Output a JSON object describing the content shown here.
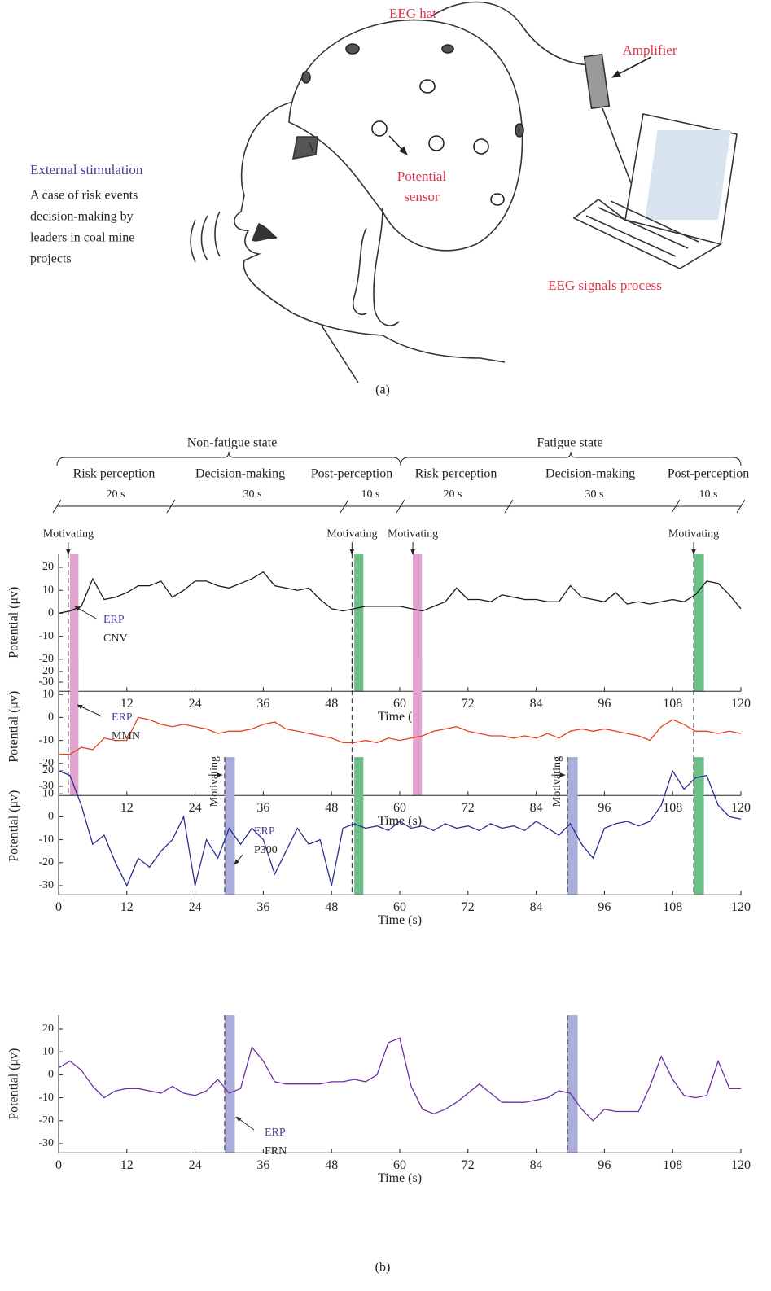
{
  "diagram": {
    "hat": "EEG hat",
    "amplifier": "Amplifier",
    "sensor": [
      "Potential",
      "sensor"
    ],
    "stimulation": "External stimulation",
    "case": [
      "A case of risk events",
      "decision-making by",
      "leaders in coal mine",
      "projects"
    ],
    "process": "EEG signals process",
    "caption": "(a)"
  },
  "timeline": {
    "states": [
      "Non-fatigue state",
      "Fatigue state"
    ],
    "phases": [
      {
        "label": "Risk perception",
        "duration": "20 s"
      },
      {
        "label": "Decision-making",
        "duration": "30 s"
      },
      {
        "label": "Post-perception",
        "duration": "10 s"
      },
      {
        "label": "Risk perception",
        "duration": "20 s"
      },
      {
        "label": "Decision-making",
        "duration": "30 s"
      },
      {
        "label": "Post-perception",
        "duration": "10 s"
      }
    ]
  },
  "caption": "(b)",
  "chart_data": [
    {
      "type": "line",
      "xlabel": "Time (s)",
      "ylabel": "Potential (μv)",
      "xlim": [
        0,
        120
      ],
      "ylim": [
        -34,
        26
      ],
      "xticks": [
        12,
        24,
        36,
        48,
        60,
        72,
        84,
        96,
        108,
        120
      ],
      "yticks": [
        -30,
        -20,
        -10,
        0,
        10,
        20
      ],
      "x": [
        0,
        2,
        4,
        6,
        8,
        10,
        12,
        14,
        16,
        18,
        20,
        22,
        24,
        26,
        28,
        30,
        32,
        34,
        36,
        38,
        40,
        42,
        44,
        46,
        48,
        50,
        52,
        54,
        56,
        58,
        60,
        62,
        64,
        66,
        68,
        70,
        72,
        74,
        76,
        78,
        80,
        82,
        84,
        86,
        88,
        90,
        92,
        94,
        96,
        98,
        100,
        102,
        104,
        106,
        108,
        110,
        112,
        114,
        116,
        118,
        120
      ],
      "series": [
        {
          "color": "#1a1a1a",
          "values": [
            0,
            1,
            3,
            15,
            6,
            7,
            9,
            12,
            12,
            14,
            7,
            10,
            14,
            14,
            12,
            11,
            13,
            15,
            18,
            12,
            11,
            10,
            11,
            6,
            2,
            1,
            2,
            3,
            3,
            3,
            3,
            2,
            1,
            3,
            5,
            11,
            6,
            6,
            5,
            8,
            7,
            6,
            6,
            5,
            5,
            12,
            7,
            6,
            5,
            9,
            4,
            5,
            4,
            5,
            6,
            5,
            8,
            14,
            13,
            8,
            2
          ]
        }
      ],
      "bands": [
        {
          "x": [
            2,
            3.5
          ],
          "color": "#e3a3cf"
        },
        {
          "x": [
            52,
            53.6
          ],
          "color": "#6dbf8a"
        },
        {
          "x": [
            62.3,
            63.9
          ],
          "color": "#e3a3cf"
        },
        {
          "x": [
            111.7,
            113.5
          ],
          "color": "#6dbf8a"
        }
      ],
      "dashed": [
        1.7,
        51.6,
        111.7
      ],
      "motivating": {
        "label": "Motivating",
        "x": [
          1.7,
          51.6,
          62.3,
          111.7
        ]
      },
      "erp": {
        "label": "ERP",
        "component": "CNV"
      }
    },
    {
      "type": "line",
      "xlabel": "Time (s)",
      "ylabel": "Potential (μv)",
      "xlim": [
        0,
        120
      ],
      "ylim": [
        -34,
        26
      ],
      "xticks": [
        12,
        24,
        36,
        48,
        60,
        72,
        84,
        96,
        108,
        120
      ],
      "yticks": [
        -30,
        -20,
        -10,
        0,
        10,
        20
      ],
      "x": [
        0,
        2,
        4,
        6,
        8,
        10,
        12,
        14,
        16,
        18,
        20,
        22,
        24,
        26,
        28,
        30,
        32,
        34,
        36,
        38,
        40,
        42,
        44,
        46,
        48,
        50,
        52,
        54,
        56,
        58,
        60,
        62,
        64,
        66,
        68,
        70,
        72,
        74,
        76,
        78,
        80,
        82,
        84,
        86,
        88,
        90,
        92,
        94,
        96,
        98,
        100,
        102,
        104,
        106,
        108,
        110,
        112,
        114,
        116,
        118,
        120
      ],
      "series": [
        {
          "color": "#e8411f",
          "values": [
            -16,
            -16,
            -13,
            -14,
            -9,
            -10,
            -10,
            0,
            -1,
            -3,
            -4,
            -3,
            -4,
            -5,
            -7,
            -6,
            -6,
            -5,
            -3,
            -2,
            -5,
            -6,
            -7,
            -8,
            -9,
            -11,
            -11,
            -10,
            -11,
            -9,
            -10,
            -9,
            -8,
            -6,
            -5,
            -4,
            -6,
            -7,
            -8,
            -8,
            -9,
            -8,
            -9,
            -7,
            -9,
            -6,
            -5,
            -6,
            -5,
            -6,
            -7,
            -8,
            -10,
            -4,
            -1,
            -3,
            -6,
            -6,
            -7,
            -6,
            -7
          ]
        }
      ],
      "bands": [
        {
          "x": [
            2,
            3.5
          ],
          "color": "#e3a3cf"
        },
        {
          "x": [
            62.3,
            63.9
          ],
          "color": "#e3a3cf"
        }
      ],
      "dashed": [
        1.7,
        51.6,
        111.7
      ],
      "erp": {
        "label": "ERP",
        "component": "MMN"
      }
    },
    {
      "type": "line",
      "xlabel": "Time (s)",
      "ylabel": "Potential (μv)",
      "xlim": [
        0,
        120
      ],
      "ylim": [
        -34,
        26
      ],
      "xticks": [
        0,
        12,
        24,
        36,
        48,
        60,
        72,
        84,
        96,
        108,
        120
      ],
      "yticks": [
        -30,
        -20,
        -10,
        0,
        10,
        20
      ],
      "x": [
        0,
        2,
        4,
        6,
        8,
        10,
        12,
        14,
        16,
        18,
        20,
        22,
        24,
        26,
        28,
        30,
        32,
        34,
        36,
        38,
        40,
        42,
        44,
        46,
        48,
        50,
        52,
        54,
        56,
        58,
        60,
        62,
        64,
        66,
        68,
        70,
        72,
        74,
        76,
        78,
        80,
        82,
        84,
        86,
        88,
        90,
        92,
        94,
        96,
        98,
        100,
        102,
        104,
        106,
        108,
        110,
        112,
        114,
        116,
        118,
        120
      ],
      "series": [
        {
          "color": "#2b2d8f",
          "values": [
            20,
            18,
            5,
            -12,
            -8,
            -20,
            -30,
            -18,
            -22,
            -15,
            -10,
            0,
            -30,
            -10,
            -18,
            -5,
            -12,
            -5,
            -10,
            -25,
            -15,
            -5,
            -12,
            -10,
            -30,
            -5,
            -3,
            -5,
            -4,
            -6,
            -2,
            -5,
            -4,
            -6,
            -3,
            -5,
            -4,
            -6,
            -3,
            -5,
            -4,
            -6,
            -2,
            -5,
            -8,
            -3,
            -12,
            -18,
            -5,
            -3,
            -2,
            -4,
            -2,
            5,
            20,
            12,
            17,
            18,
            5,
            0,
            -1
          ]
        }
      ],
      "bands": [
        {
          "x": [
            29.2,
            31
          ],
          "color": "#aaacd9"
        },
        {
          "x": [
            52,
            53.6
          ],
          "color": "#6dbf8a"
        },
        {
          "x": [
            89.5,
            91.3
          ],
          "color": "#aaacd9"
        },
        {
          "x": [
            111.7,
            113.5
          ],
          "color": "#6dbf8a"
        }
      ],
      "dashed": [
        29.2,
        51.6,
        89.5,
        111.7
      ],
      "motivating": {
        "label": "Motivating",
        "x": [
          29.2,
          89.5
        ]
      },
      "erp": {
        "label": "ERP",
        "component": "P300"
      }
    },
    {
      "type": "line",
      "xlabel": "Time (s)",
      "ylabel": "Potential (μv)",
      "xlim": [
        0,
        120
      ],
      "ylim": [
        -34,
        26
      ],
      "xticks": [
        0,
        12,
        24,
        36,
        48,
        60,
        72,
        84,
        96,
        108,
        120
      ],
      "yticks": [
        -30,
        -20,
        -10,
        0,
        10,
        20
      ],
      "x": [
        0,
        2,
        4,
        6,
        8,
        10,
        12,
        14,
        16,
        18,
        20,
        22,
        24,
        26,
        28,
        30,
        32,
        34,
        36,
        38,
        40,
        42,
        44,
        46,
        48,
        50,
        52,
        54,
        56,
        58,
        60,
        62,
        64,
        66,
        68,
        70,
        72,
        74,
        76,
        78,
        80,
        82,
        84,
        86,
        88,
        90,
        92,
        94,
        96,
        98,
        100,
        102,
        104,
        106,
        108,
        110,
        112,
        114,
        116,
        118,
        120
      ],
      "series": [
        {
          "color": "#6b2fa0",
          "values": [
            3,
            6,
            2,
            -5,
            -10,
            -7,
            -6,
            -6,
            -7,
            -8,
            -5,
            -8,
            -9,
            -7,
            -2,
            -8,
            -6,
            12,
            6,
            -3,
            -4,
            -4,
            -4,
            -4,
            -3,
            -3,
            -2,
            -3,
            0,
            14,
            16,
            -5,
            -15,
            -17,
            -15,
            -12,
            -8,
            -4,
            -8,
            -12,
            -12,
            -12,
            -11,
            -10,
            -7,
            -8,
            -15,
            -20,
            -15,
            -16,
            -16,
            -16,
            -5,
            8,
            -2,
            -9,
            -10,
            -9,
            6,
            -6,
            -6
          ]
        }
      ],
      "bands": [
        {
          "x": [
            29.2,
            31
          ],
          "color": "#aaacd9"
        },
        {
          "x": [
            89.5,
            91.3
          ],
          "color": "#aaacd9"
        }
      ],
      "dashed": [
        29.2,
        89.5
      ],
      "erp": {
        "label": "ERP",
        "component": "FRN"
      }
    }
  ]
}
